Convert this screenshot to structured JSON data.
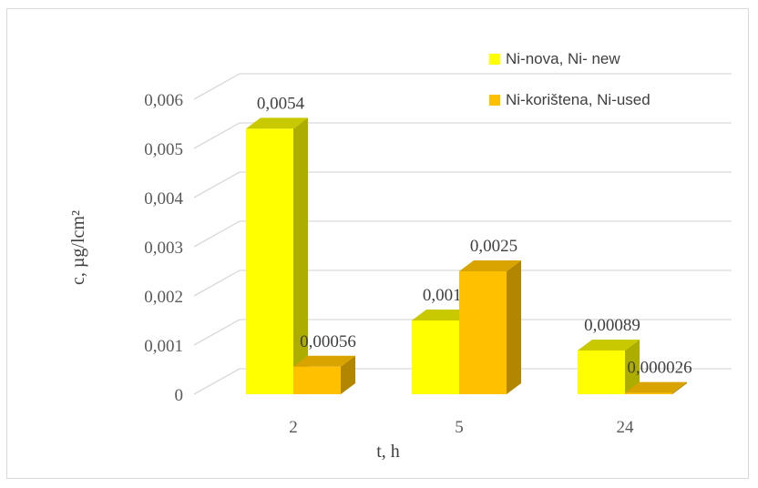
{
  "chart_data": {
    "type": "bar",
    "categories": [
      "2",
      "5",
      "24"
    ],
    "series": [
      {
        "name": "Ni-nova,  Ni- new",
        "values": [
          0.0054,
          0.0015,
          0.00089
        ],
        "labels": [
          "0,0054",
          "0,0015",
          "0,00089"
        ],
        "color": "#ffff00",
        "side_color": "#adad00",
        "top_color": "#c9c900"
      },
      {
        "name": "Ni-korištena, Ni-used",
        "values": [
          0.00056,
          0.0025,
          2.6e-05
        ],
        "labels": [
          "0,00056",
          "0,0025",
          "0,000026"
        ],
        "color": "#ffc000",
        "side_color": "#b28600",
        "top_color": "#d9a300"
      }
    ],
    "y_ticks": [
      0,
      0.001,
      0.002,
      0.003,
      0.004,
      0.005,
      0.006
    ],
    "y_tick_labels": [
      "0",
      "0,001",
      "0,002",
      "0,003",
      "0,004",
      "0,005",
      "0,006"
    ],
    "ylim": [
      0,
      0.006
    ],
    "xlabel": "t, h",
    "ylabel": "c, µg/lcm²",
    "grid": true,
    "legend_position": "top-right",
    "gridline_color": "#d9d9d9"
  }
}
